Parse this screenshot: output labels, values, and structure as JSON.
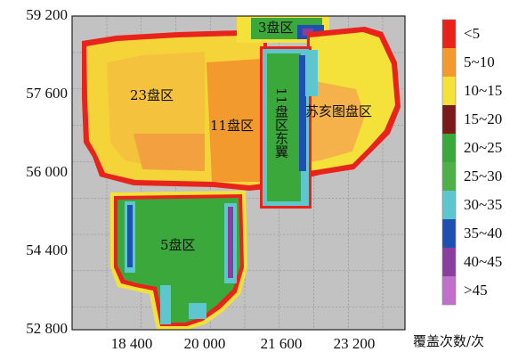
{
  "map": {
    "y_ticks": [
      "59 200",
      "57 600",
      "56 000",
      "54 400",
      "52 800"
    ],
    "x_ticks": [
      "18 400",
      "20 000",
      "21 600",
      "23 200"
    ],
    "zones": {
      "z3": "3盘区",
      "z23": "23盘区",
      "z11": "11盘区",
      "z11e": "11盘区东翼",
      "zsu": "苏亥图盘区",
      "z5": "5盘区"
    }
  },
  "legend": {
    "title": "覆盖次数/次",
    "items": [
      {
        "label": "<5",
        "color": "#e8231c"
      },
      {
        "label": "5~10",
        "color": "#f29a2e"
      },
      {
        "label": "10~15",
        "color": "#f4e23b"
      },
      {
        "label": "15~20",
        "color": "#7a1a1a"
      },
      {
        "label": "20~25",
        "color": "#3aa83a"
      },
      {
        "label": "25~30",
        "color": "#4fb04a"
      },
      {
        "label": "30~35",
        "color": "#5ec6cf"
      },
      {
        "label": "35~40",
        "color": "#1f4fb0"
      },
      {
        "label": "40~45",
        "color": "#8a3e9e"
      },
      {
        "label": ">45",
        "color": "#c070c8"
      }
    ]
  }
}
